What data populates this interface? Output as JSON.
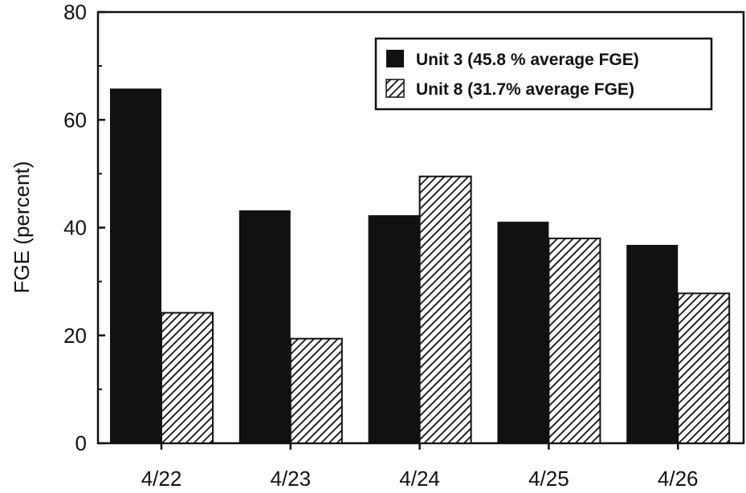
{
  "chart_data": {
    "type": "bar",
    "title": "",
    "xlabel": "",
    "ylabel": "FGE (percent)",
    "ylim": [
      0,
      80
    ],
    "yticks": [
      "0",
      "20",
      "40",
      "60",
      "80"
    ],
    "categories": [
      "4/22",
      "4/23",
      "4/24",
      "4/25",
      "4/26"
    ],
    "series": [
      {
        "name": "Unit 3 (45.8 % average FGE)",
        "values": [
          65.8,
          43.2,
          42.3,
          41.1,
          36.8
        ],
        "color": "#111111",
        "fill": "solid"
      },
      {
        "name": "Unit 8 (31.7% average FGE)",
        "values": [
          24.2,
          19.4,
          49.5,
          38.0,
          27.8
        ],
        "color": "#111111",
        "fill": "hatched"
      }
    ],
    "legend_position": "top-right",
    "grid": false
  }
}
